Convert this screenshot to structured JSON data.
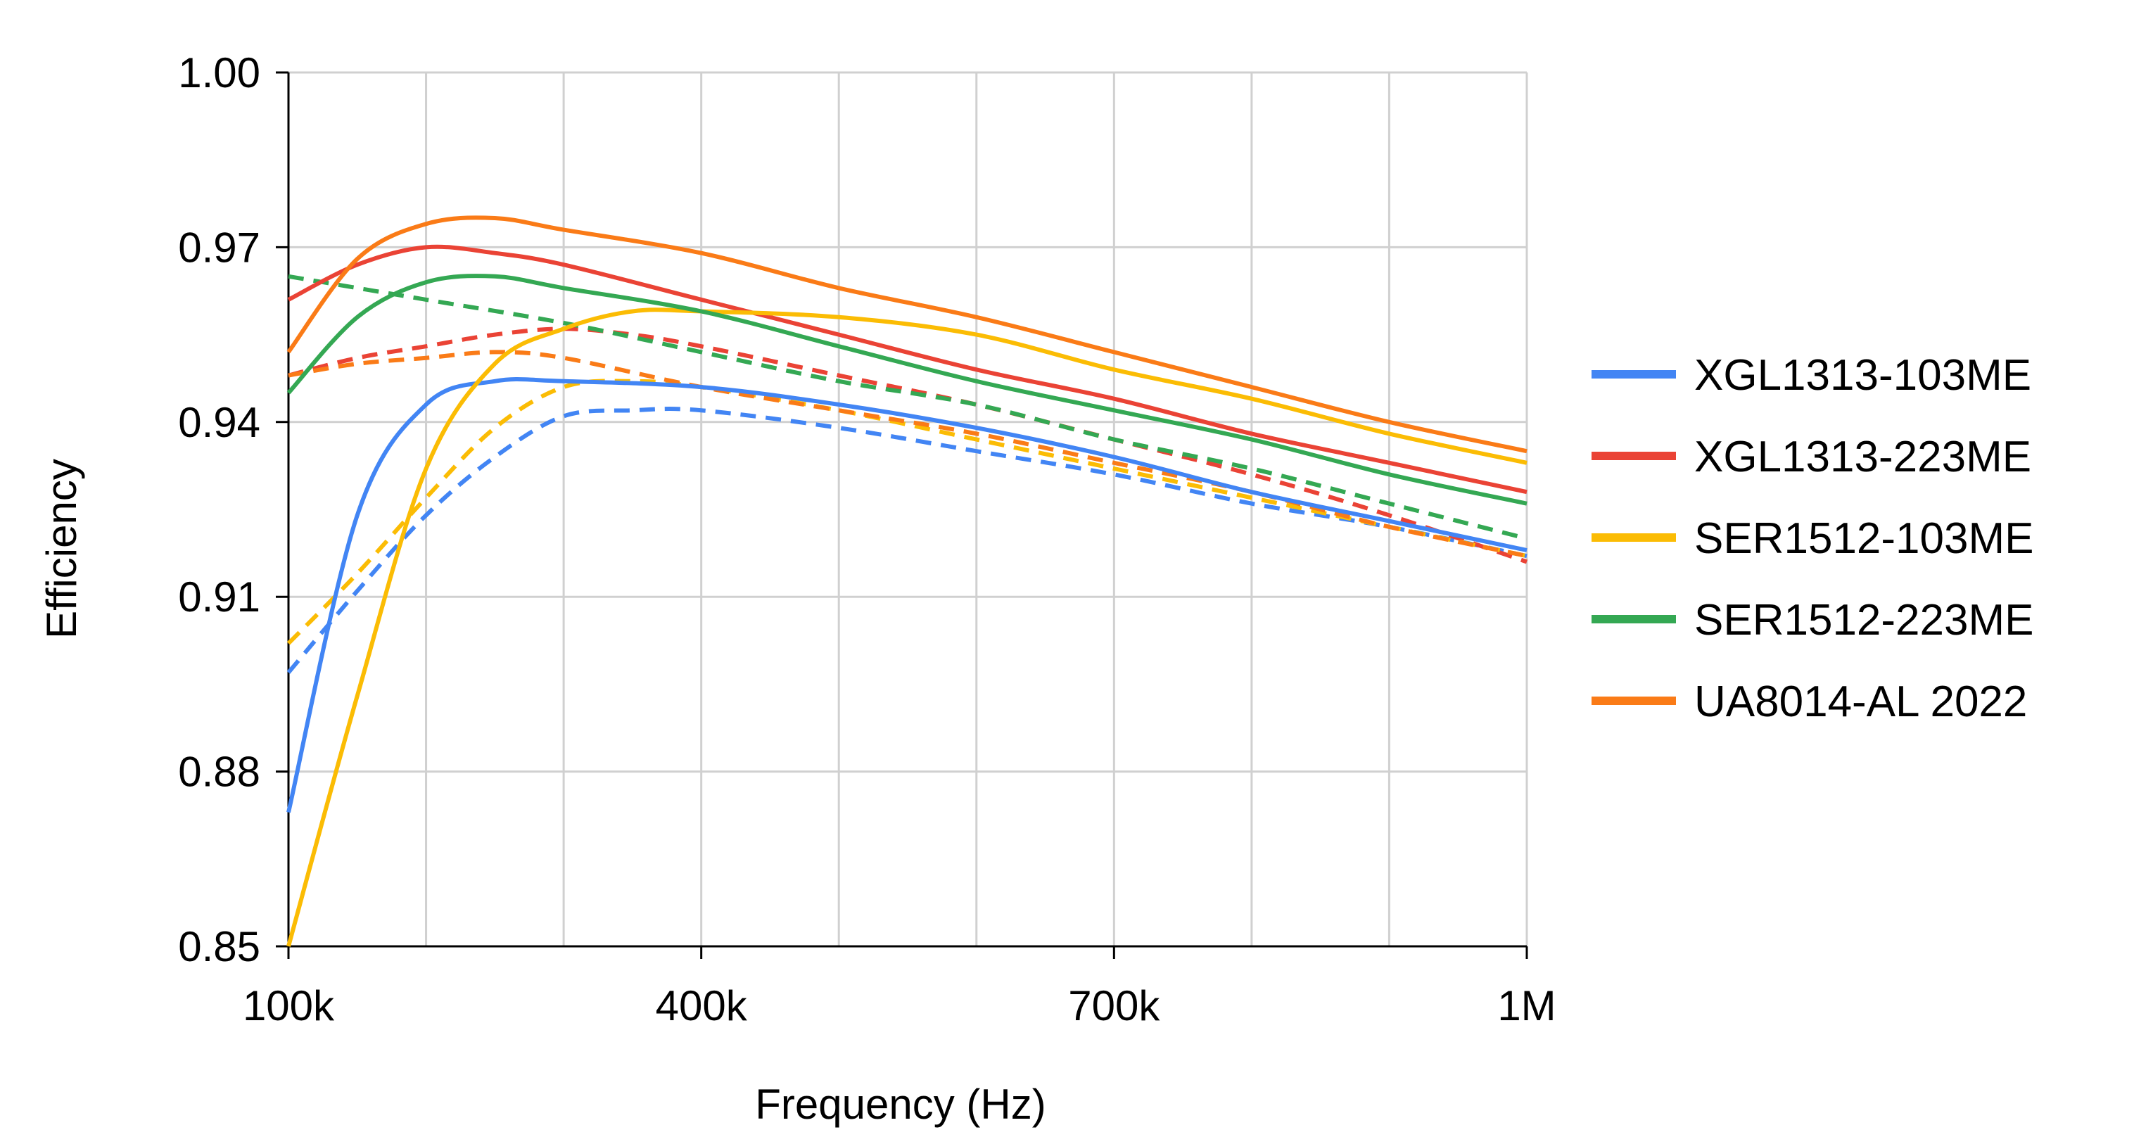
{
  "chart_data": {
    "type": "line",
    "title": "",
    "xlabel": "Frequency (Hz)",
    "ylabel": "Efficiency",
    "xlim": [
      100000,
      1000000
    ],
    "ylim": [
      0.85,
      1.0
    ],
    "x_ticks": [
      {
        "value": 100000,
        "label": "100k"
      },
      {
        "value": 400000,
        "label": "400k"
      },
      {
        "value": 700000,
        "label": "700k"
      },
      {
        "value": 1000000,
        "label": "1M"
      }
    ],
    "y_ticks": [
      {
        "value": 0.85,
        "label": "0.85"
      },
      {
        "value": 0.88,
        "label": "0.88"
      },
      {
        "value": 0.91,
        "label": "0.91"
      },
      {
        "value": 0.94,
        "label": "0.94"
      },
      {
        "value": 0.97,
        "label": "0.97"
      },
      {
        "value": 1.0,
        "label": "1.00"
      }
    ],
    "grid": true,
    "grid_x_step": 100000,
    "legend_position": "right",
    "series": [
      {
        "name": "XGL1313-103ME",
        "color": "#4285F4",
        "style": "solid",
        "points": [
          [
            100000,
            0.873
          ],
          [
            150000,
            0.924
          ],
          [
            200000,
            0.943
          ],
          [
            250000,
            0.947
          ],
          [
            300000,
            0.947
          ],
          [
            400000,
            0.946
          ],
          [
            500000,
            0.943
          ],
          [
            600000,
            0.939
          ],
          [
            700000,
            0.934
          ],
          [
            800000,
            0.928
          ],
          [
            900000,
            0.923
          ],
          [
            1000000,
            0.918
          ]
        ]
      },
      {
        "name": "XGL1313-103ME",
        "color": "#4285F4",
        "style": "dashed",
        "points": [
          [
            100000,
            0.897
          ],
          [
            150000,
            0.911
          ],
          [
            200000,
            0.924
          ],
          [
            250000,
            0.934
          ],
          [
            300000,
            0.941
          ],
          [
            350000,
            0.942
          ],
          [
            400000,
            0.942
          ],
          [
            500000,
            0.939
          ],
          [
            600000,
            0.935
          ],
          [
            700000,
            0.931
          ],
          [
            800000,
            0.926
          ],
          [
            900000,
            0.922
          ],
          [
            1000000,
            0.917
          ]
        ]
      },
      {
        "name": "XGL1313-223ME",
        "color": "#EA4335",
        "style": "solid",
        "points": [
          [
            100000,
            0.961
          ],
          [
            150000,
            0.967
          ],
          [
            200000,
            0.97
          ],
          [
            250000,
            0.969
          ],
          [
            300000,
            0.967
          ],
          [
            400000,
            0.961
          ],
          [
            500000,
            0.955
          ],
          [
            600000,
            0.949
          ],
          [
            700000,
            0.944
          ],
          [
            800000,
            0.938
          ],
          [
            900000,
            0.933
          ],
          [
            1000000,
            0.928
          ]
        ]
      },
      {
        "name": "XGL1313-223ME",
        "color": "#EA4335",
        "style": "dashed",
        "points": [
          [
            100000,
            0.948
          ],
          [
            150000,
            0.951
          ],
          [
            200000,
            0.953
          ],
          [
            250000,
            0.955
          ],
          [
            300000,
            0.956
          ],
          [
            350000,
            0.955
          ],
          [
            400000,
            0.953
          ],
          [
            500000,
            0.948
          ],
          [
            600000,
            0.943
          ],
          [
            700000,
            0.937
          ],
          [
            800000,
            0.931
          ],
          [
            900000,
            0.924
          ],
          [
            1000000,
            0.916
          ]
        ]
      },
      {
        "name": "SER1512-103ME",
        "color": "#FBBC04",
        "style": "solid",
        "points": [
          [
            100000,
            0.85
          ],
          [
            150000,
            0.893
          ],
          [
            200000,
            0.932
          ],
          [
            250000,
            0.95
          ],
          [
            300000,
            0.956
          ],
          [
            350000,
            0.959
          ],
          [
            400000,
            0.959
          ],
          [
            500000,
            0.958
          ],
          [
            600000,
            0.955
          ],
          [
            700000,
            0.949
          ],
          [
            800000,
            0.944
          ],
          [
            900000,
            0.938
          ],
          [
            1000000,
            0.933
          ]
        ]
      },
      {
        "name": "SER1512-103ME",
        "color": "#FBBC04",
        "style": "dashed",
        "points": [
          [
            100000,
            0.902
          ],
          [
            150000,
            0.914
          ],
          [
            200000,
            0.927
          ],
          [
            250000,
            0.939
          ],
          [
            300000,
            0.946
          ],
          [
            350000,
            0.947
          ],
          [
            400000,
            0.946
          ],
          [
            500000,
            0.942
          ],
          [
            600000,
            0.937
          ],
          [
            700000,
            0.932
          ],
          [
            800000,
            0.927
          ],
          [
            900000,
            0.922
          ],
          [
            1000000,
            0.917
          ]
        ]
      },
      {
        "name": "SER1512-223ME",
        "color": "#34A853",
        "style": "solid",
        "points": [
          [
            100000,
            0.945
          ],
          [
            150000,
            0.958
          ],
          [
            200000,
            0.964
          ],
          [
            250000,
            0.965
          ],
          [
            300000,
            0.963
          ],
          [
            400000,
            0.959
          ],
          [
            500000,
            0.953
          ],
          [
            600000,
            0.947
          ],
          [
            700000,
            0.942
          ],
          [
            800000,
            0.937
          ],
          [
            900000,
            0.931
          ],
          [
            1000000,
            0.926
          ]
        ]
      },
      {
        "name": "SER1512-223ME",
        "color": "#34A853",
        "style": "dashed",
        "points": [
          [
            100000,
            0.965
          ],
          [
            200000,
            0.961
          ],
          [
            300000,
            0.957
          ],
          [
            400000,
            0.952
          ],
          [
            500000,
            0.947
          ],
          [
            600000,
            0.943
          ],
          [
            700000,
            0.937
          ],
          [
            800000,
            0.932
          ],
          [
            900000,
            0.926
          ],
          [
            1000000,
            0.92
          ]
        ]
      },
      {
        "name": "UA8014-AL 2022",
        "color": "#FA7B17",
        "style": "solid",
        "points": [
          [
            100000,
            0.952
          ],
          [
            150000,
            0.968
          ],
          [
            200000,
            0.974
          ],
          [
            250000,
            0.975
          ],
          [
            300000,
            0.973
          ],
          [
            400000,
            0.969
          ],
          [
            500000,
            0.963
          ],
          [
            600000,
            0.958
          ],
          [
            700000,
            0.952
          ],
          [
            800000,
            0.946
          ],
          [
            900000,
            0.94
          ],
          [
            1000000,
            0.935
          ]
        ]
      },
      {
        "name": "UA8014-AL 2022",
        "color": "#FA7B17",
        "style": "dashed",
        "points": [
          [
            100000,
            0.948
          ],
          [
            150000,
            0.95
          ],
          [
            200000,
            0.951
          ],
          [
            250000,
            0.952
          ],
          [
            300000,
            0.951
          ],
          [
            400000,
            0.946
          ],
          [
            500000,
            0.942
          ],
          [
            600000,
            0.938
          ],
          [
            700000,
            0.933
          ],
          [
            800000,
            0.928
          ],
          [
            900000,
            0.922
          ],
          [
            1000000,
            0.917
          ]
        ]
      }
    ],
    "legend": [
      {
        "label": "XGL1313-103ME",
        "color": "#4285F4"
      },
      {
        "label": "XGL1313-223ME",
        "color": "#EA4335"
      },
      {
        "label": "SER1512-103ME",
        "color": "#FBBC04"
      },
      {
        "label": "SER1512-223ME",
        "color": "#34A853"
      },
      {
        "label": "UA8014-AL 2022",
        "color": "#FA7B17"
      }
    ]
  }
}
